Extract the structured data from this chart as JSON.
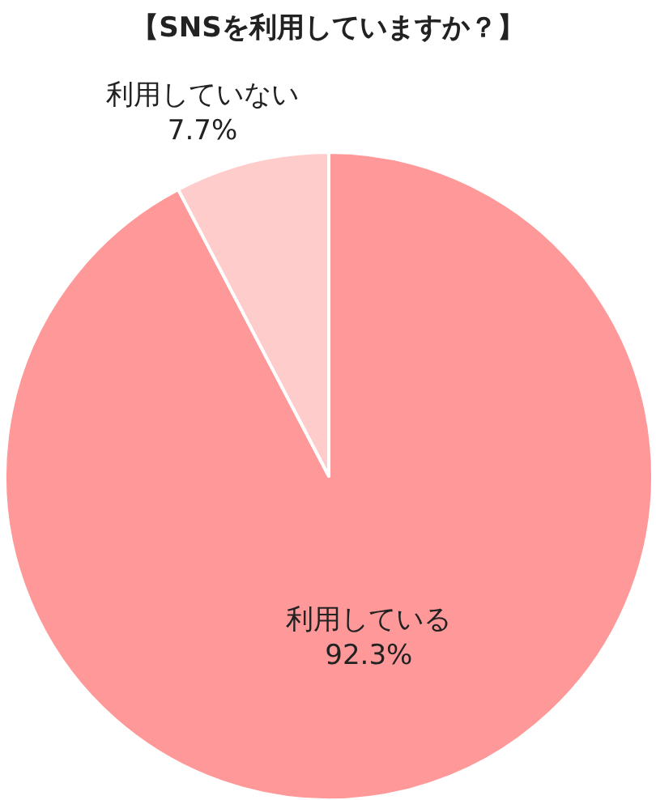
{
  "chart_data": {
    "type": "pie",
    "title": "【SNSを利用していますか？】",
    "categories": [
      "利用している",
      "利用していない"
    ],
    "values": [
      92.3,
      7.7
    ],
    "value_labels": [
      "92.3%",
      "7.7%"
    ],
    "colors": [
      "#ff9999",
      "#ffcccc"
    ],
    "legend": false
  }
}
